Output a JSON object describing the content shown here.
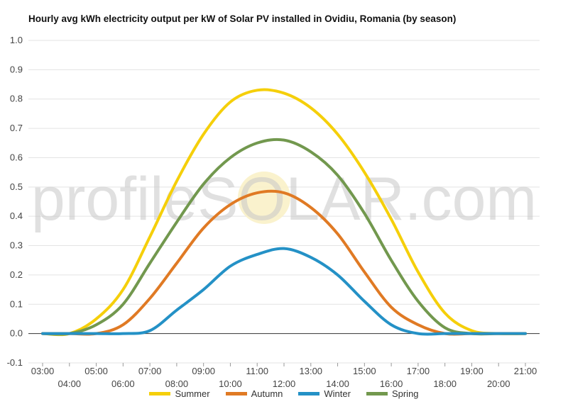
{
  "chart_data": {
    "type": "line",
    "title": "Hourly avg kWh electricity output per kW of Solar PV installed in Ovidiu, Romania (by season)",
    "xlabel": "",
    "ylabel": "",
    "ylim": [
      -0.1,
      1.0
    ],
    "y_ticks": [
      "-0.1",
      "0.0",
      "0.1",
      "0.2",
      "0.3",
      "0.4",
      "0.5",
      "0.6",
      "0.7",
      "0.8",
      "0.9",
      "1.0"
    ],
    "categories": [
      "03:00",
      "04:00",
      "05:00",
      "06:00",
      "07:00",
      "08:00",
      "09:00",
      "10:00",
      "11:00",
      "12:00",
      "13:00",
      "14:00",
      "15:00",
      "16:00",
      "17:00",
      "18:00",
      "19:00",
      "20:00",
      "21:00"
    ],
    "grid": true,
    "legend_position": "bottom",
    "watermark": "profileSOLAR.com",
    "series": [
      {
        "name": "Summer",
        "color": "#f5cf0a",
        "values": [
          0.0,
          0.0,
          0.05,
          0.15,
          0.33,
          0.52,
          0.68,
          0.79,
          0.83,
          0.82,
          0.77,
          0.68,
          0.55,
          0.39,
          0.21,
          0.07,
          0.01,
          0.0,
          0.0
        ]
      },
      {
        "name": "Autumn",
        "color": "#e07a24",
        "values": [
          0.0,
          0.0,
          0.0,
          0.03,
          0.12,
          0.24,
          0.36,
          0.44,
          0.48,
          0.48,
          0.43,
          0.34,
          0.21,
          0.09,
          0.03,
          0.0,
          0.0,
          0.0,
          0.0
        ]
      },
      {
        "name": "Winter",
        "color": "#2491c6",
        "values": [
          0.0,
          0.0,
          0.0,
          0.0,
          0.01,
          0.08,
          0.15,
          0.23,
          0.27,
          0.29,
          0.26,
          0.2,
          0.11,
          0.03,
          0.0,
          0.0,
          0.0,
          0.0,
          0.0
        ]
      },
      {
        "name": "Spring",
        "color": "#72984e",
        "values": [
          0.0,
          0.0,
          0.03,
          0.1,
          0.24,
          0.38,
          0.51,
          0.6,
          0.65,
          0.66,
          0.62,
          0.54,
          0.41,
          0.25,
          0.11,
          0.02,
          0.0,
          0.0,
          0.0
        ]
      }
    ]
  }
}
